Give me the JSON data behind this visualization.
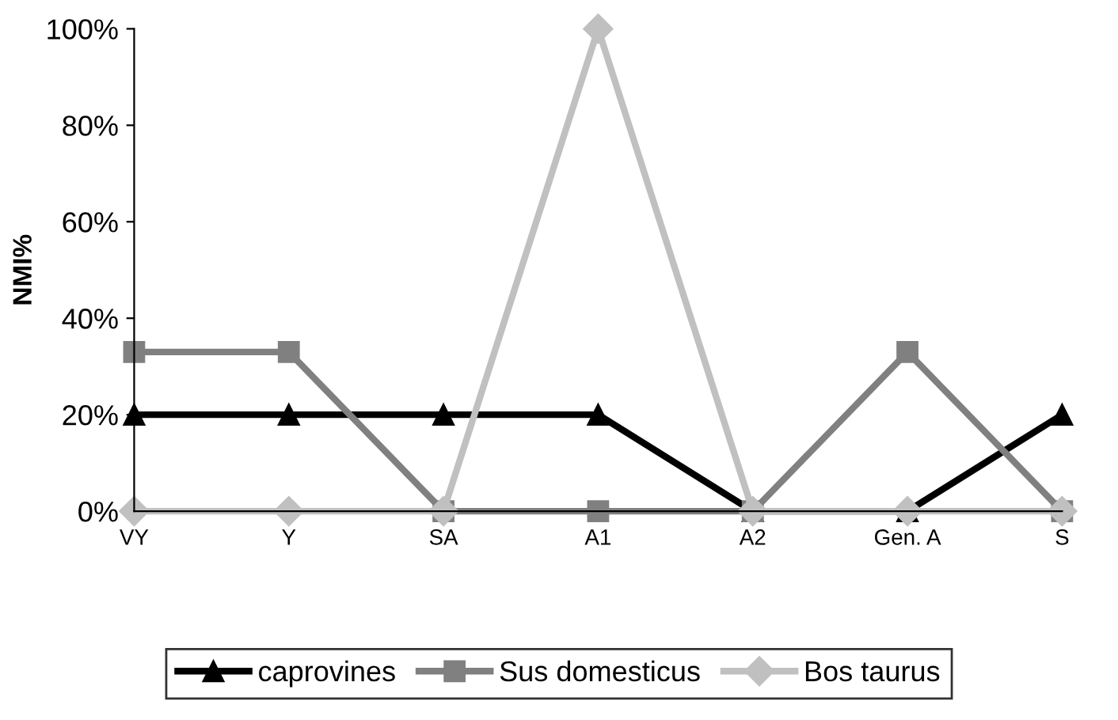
{
  "chart_data": {
    "type": "line",
    "ylabel": "NMI%",
    "categories": [
      "VY",
      "Y",
      "SA",
      "A1",
      "A2",
      "Gen. A",
      "S"
    ],
    "series": [
      {
        "name": "caprovines",
        "color": "#000000",
        "marker": "triangle",
        "values": [
          20,
          20,
          20,
          20,
          0,
          0,
          20
        ]
      },
      {
        "name": "Sus domesticus",
        "color": "#808080",
        "marker": "square",
        "values": [
          33,
          33,
          0,
          0,
          0,
          33,
          0
        ]
      },
      {
        "name": "Bos taurus",
        "color": "#c0c0c0",
        "marker": "diamond",
        "values": [
          0,
          0,
          0,
          100,
          0,
          0,
          0
        ]
      }
    ],
    "ylim": [
      0,
      100
    ],
    "yticks": [
      {
        "value": 0,
        "label": "0%"
      },
      {
        "value": 20,
        "label": "20%"
      },
      {
        "value": 40,
        "label": "40%"
      },
      {
        "value": 60,
        "label": "60%"
      },
      {
        "value": 80,
        "label": "80%"
      },
      {
        "value": 100,
        "label": "100%"
      }
    ],
    "grid": false,
    "legend": "bottom",
    "line_style": "solid"
  }
}
